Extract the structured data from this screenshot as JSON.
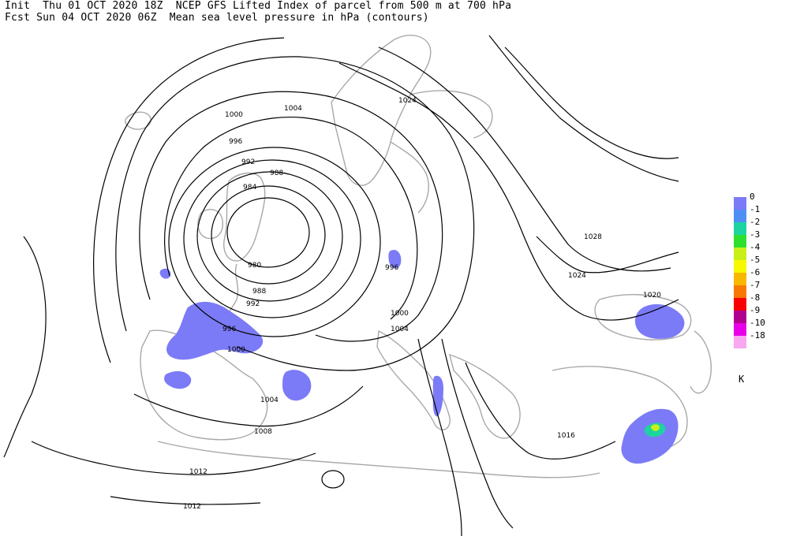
{
  "header": {
    "line1": "Init  Thu 01 OCT 2020 18Z  NCEP GFS Lifted Index of parcel from 500 m at 700 hPa",
    "line2": "Fcst Sun 04 OCT 2020 06Z  Mean sea level pressure in hPa (contours)"
  },
  "legend": {
    "items": [
      {
        "label": "0",
        "color": "#7b7bf7"
      },
      {
        "label": "-1",
        "color": "#4f8ff5"
      },
      {
        "label": "-2",
        "color": "#1dd4a0"
      },
      {
        "label": "-3",
        "color": "#2ee02e"
      },
      {
        "label": "-4",
        "color": "#c8f018"
      },
      {
        "label": "-5",
        "color": "#f8f800"
      },
      {
        "label": "-6",
        "color": "#f8b800"
      },
      {
        "label": "-7",
        "color": "#f87800"
      },
      {
        "label": "-8",
        "color": "#f80000"
      },
      {
        "label": "-9",
        "color": "#b00090"
      },
      {
        "label": "-10",
        "color": "#e800e8"
      },
      {
        "label": "-18",
        "color": "#f8a8f0"
      }
    ],
    "unit": "K"
  },
  "contour_labels": {
    "l1004a": "1004",
    "l1000a": "1000",
    "l996a": "996",
    "l992a": "992",
    "l988a": "988",
    "l984": "984",
    "l980": "980",
    "l988b": "988",
    "l992b": "992",
    "l996b": "996",
    "l1000b": "1000",
    "l1004b": "1004",
    "l1008": "1008",
    "l1012a": "1012",
    "l1012b": "1012",
    "l1024a": "1024",
    "l1028": "1028",
    "l1024b": "1024",
    "l1020": "1020",
    "l1016": "1016",
    "l996c": "996",
    "l1000c": "1000",
    "l1004c": "1004"
  }
}
